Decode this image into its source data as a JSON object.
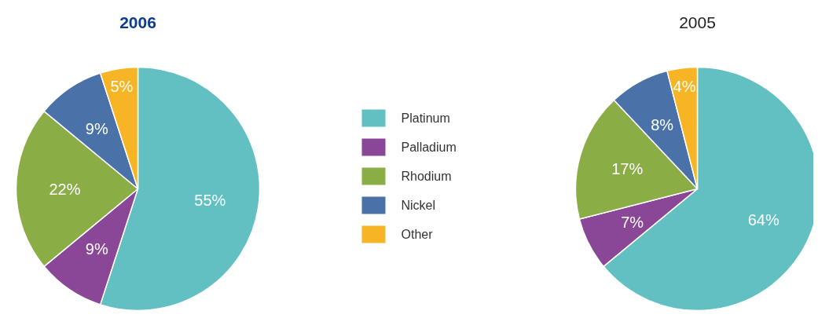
{
  "chart_data": [
    {
      "type": "pie",
      "title": "2006",
      "categories": [
        "Platinum",
        "Palladium",
        "Rhodium",
        "Nickel",
        "Other"
      ],
      "values": [
        55,
        9,
        22,
        9,
        5
      ],
      "value_labels": [
        "55%",
        "9%",
        "22%",
        "9%",
        "5%"
      ],
      "colors": [
        "#62c0c2",
        "#8b4797",
        "#8aad45",
        "#4a72a8",
        "#f7b526"
      ],
      "legend": "right"
    },
    {
      "type": "pie",
      "title": "2005",
      "values": [
        64,
        7,
        17,
        8,
        4
      ],
      "value_labels": [
        "64%",
        "7%",
        "17%",
        "8%",
        "4%"
      ],
      "colors": [
        "#62c0c2",
        "#8b4797",
        "#8aad45",
        "#4a72a8",
        "#f7b526"
      ]
    }
  ]
}
